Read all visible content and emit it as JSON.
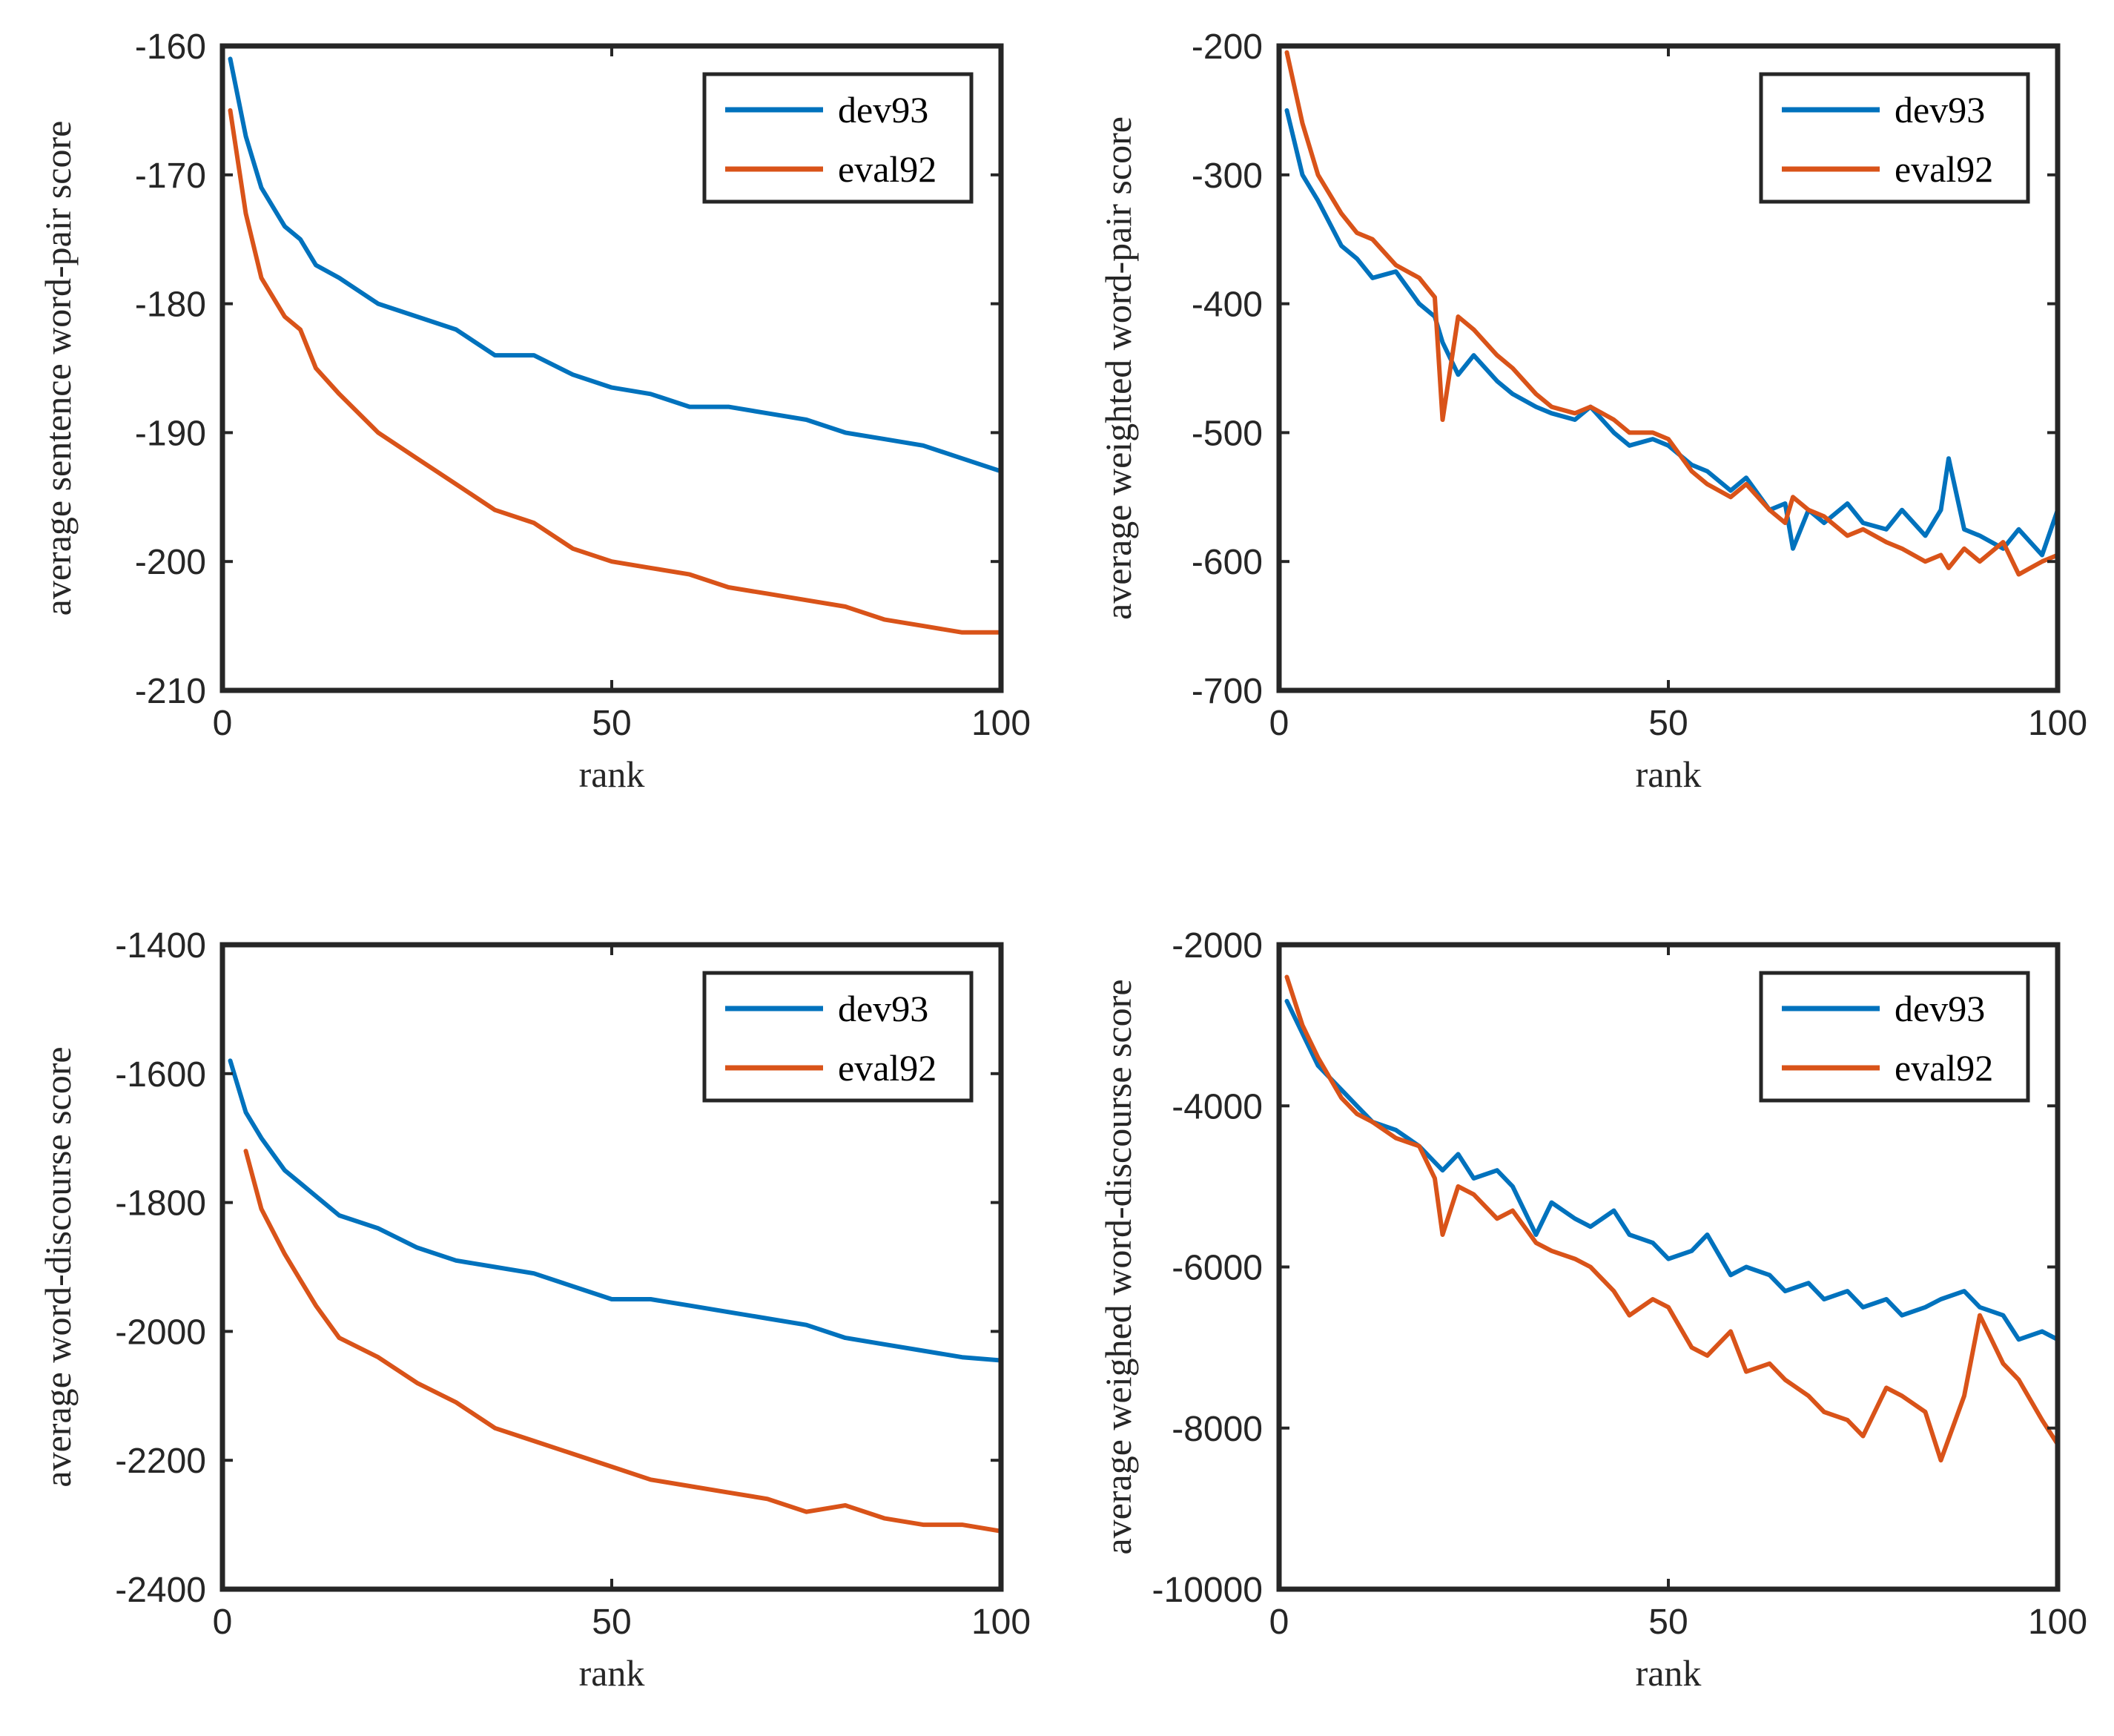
{
  "colors": {
    "dev93": "#0072BD",
    "eval92": "#D95319",
    "axis": "#262626"
  },
  "chart_data": [
    {
      "type": "line",
      "title": "",
      "xlabel": "rank",
      "ylabel": "average sentence word-pair score",
      "xlim": [
        0,
        100
      ],
      "ylim": [
        -210,
        -160
      ],
      "xticks": [
        0,
        50,
        100
      ],
      "xtick_labels": [
        "0",
        "50",
        "100"
      ],
      "yticks": [
        -160,
        -170,
        -180,
        -190,
        -200,
        -210
      ],
      "ytick_labels": [
        "-160",
        "-170",
        "-180",
        "-190",
        "-200",
        "-210"
      ],
      "legend": "top-right",
      "x": [
        1,
        3,
        5,
        8,
        10,
        12,
        15,
        20,
        25,
        30,
        35,
        40,
        45,
        50,
        55,
        60,
        65,
        70,
        75,
        80,
        85,
        90,
        95,
        100
      ],
      "series": [
        {
          "name": "dev93",
          "values": [
            -161,
            -167,
            -171,
            -174,
            -175,
            -177,
            -178,
            -180,
            -181,
            -182,
            -184,
            -184,
            -185.5,
            -186.5,
            -187,
            -188,
            -188,
            -188.5,
            -189,
            -190,
            -190.5,
            -191,
            -192,
            -193
          ]
        },
        {
          "name": "eval92",
          "values": [
            -165,
            -173,
            -178,
            -181,
            -182,
            -185,
            -187,
            -190,
            -192,
            -194,
            -196,
            -197,
            -199,
            -200,
            -200.5,
            -201,
            -202,
            -202.5,
            -203,
            -203.5,
            -204.5,
            -205,
            -205.5,
            -205.5
          ]
        }
      ]
    },
    {
      "type": "line",
      "title": "",
      "xlabel": "rank",
      "ylabel": "average weighted word-pair score",
      "xlim": [
        0,
        100
      ],
      "ylim": [
        -700,
        -200
      ],
      "xticks": [
        0,
        50,
        100
      ],
      "xtick_labels": [
        "0",
        "50",
        "100"
      ],
      "yticks": [
        -200,
        -300,
        -400,
        -500,
        -600,
        -700
      ],
      "ytick_labels": [
        "-200",
        "-300",
        "-400",
        "-500",
        "-600",
        "-700"
      ],
      "legend": "top-right",
      "x": [
        1,
        3,
        5,
        8,
        10,
        12,
        15,
        18,
        20,
        21,
        23,
        25,
        28,
        30,
        33,
        35,
        38,
        40,
        43,
        45,
        48,
        50,
        53,
        55,
        58,
        60,
        63,
        65,
        66,
        68,
        70,
        73,
        75,
        78,
        80,
        83,
        85,
        86,
        88,
        90,
        93,
        95,
        98,
        100
      ],
      "series": [
        {
          "name": "dev93",
          "values": [
            -250,
            -300,
            -320,
            -355,
            -365,
            -380,
            -375,
            -400,
            -410,
            -430,
            -455,
            -440,
            -460,
            -470,
            -480,
            -485,
            -490,
            -480,
            -500,
            -510,
            -505,
            -510,
            -525,
            -530,
            -545,
            -535,
            -560,
            -555,
            -590,
            -560,
            -570,
            -555,
            -570,
            -575,
            -560,
            -580,
            -560,
            -520,
            -575,
            -580,
            -590,
            -575,
            -595,
            -560
          ]
        },
        {
          "name": "eval92",
          "values": [
            -205,
            -260,
            -300,
            -330,
            -345,
            -350,
            -370,
            -380,
            -395,
            -490,
            -410,
            -420,
            -440,
            -450,
            -470,
            -480,
            -485,
            -480,
            -490,
            -500,
            -500,
            -505,
            -530,
            -540,
            -550,
            -540,
            -560,
            -570,
            -550,
            -560,
            -565,
            -580,
            -575,
            -585,
            -590,
            -600,
            -595,
            -605,
            -590,
            -600,
            -585,
            -610,
            -600,
            -595
          ]
        }
      ]
    },
    {
      "type": "line",
      "title": "",
      "xlabel": "rank",
      "ylabel": "average word-discourse score",
      "xlim": [
        0,
        100
      ],
      "ylim": [
        -2400,
        -1400
      ],
      "xticks": [
        0,
        50,
        100
      ],
      "xtick_labels": [
        "0",
        "50",
        "100"
      ],
      "yticks": [
        -1400,
        -1600,
        -1800,
        -2000,
        -2200,
        -2400
      ],
      "ytick_labels": [
        "-1400",
        "-1600",
        "-1800",
        "-2000",
        "-2200",
        "-2400"
      ],
      "legend": "top-right",
      "x": [
        1,
        3,
        5,
        8,
        10,
        12,
        15,
        20,
        25,
        30,
        35,
        40,
        45,
        50,
        55,
        60,
        65,
        70,
        75,
        80,
        85,
        90,
        95,
        100
      ],
      "series": [
        {
          "name": "dev93",
          "values": [
            -1580,
            -1660,
            -1700,
            -1750,
            -1770,
            -1790,
            -1820,
            -1840,
            -1870,
            -1890,
            -1900,
            -1910,
            -1930,
            -1950,
            -1950,
            -1960,
            -1970,
            -1980,
            -1990,
            -2010,
            -2020,
            -2030,
            -2040,
            -2045
          ]
        },
        {
          "name": "eval92",
          "values": [
            null,
            -1720,
            -1810,
            -1880,
            -1920,
            -1960,
            -2010,
            -2040,
            -2080,
            -2110,
            -2150,
            -2170,
            -2190,
            -2210,
            -2230,
            -2240,
            -2250,
            -2260,
            -2280,
            -2270,
            -2290,
            -2300,
            -2300,
            -2310
          ]
        }
      ]
    },
    {
      "type": "line",
      "title": "",
      "xlabel": "rank",
      "ylabel": "average weighed word-discourse score",
      "xlim": [
        0,
        100
      ],
      "ylim": [
        -10000,
        -2000
      ],
      "xticks": [
        0,
        50,
        100
      ],
      "xtick_labels": [
        "0",
        "50",
        "100"
      ],
      "yticks": [
        -2000,
        -4000,
        -6000,
        -8000,
        -10000
      ],
      "ytick_labels": [
        "-2000",
        "-4000",
        "-6000",
        "-8000",
        "-10000"
      ],
      "legend": "top-right",
      "x": [
        1,
        3,
        5,
        8,
        10,
        12,
        15,
        18,
        20,
        21,
        23,
        25,
        28,
        30,
        33,
        35,
        38,
        40,
        43,
        45,
        48,
        50,
        53,
        55,
        58,
        60,
        63,
        65,
        68,
        70,
        73,
        75,
        78,
        80,
        83,
        85,
        88,
        90,
        93,
        95,
        98,
        100
      ],
      "series": [
        {
          "name": "dev93",
          "values": [
            -2700,
            -3100,
            -3500,
            -3800,
            -4000,
            -4200,
            -4300,
            -4500,
            -4700,
            -4800,
            -4600,
            -4900,
            -4800,
            -5000,
            -5600,
            -5200,
            -5400,
            -5500,
            -5300,
            -5600,
            -5700,
            -5900,
            -5800,
            -5600,
            -6100,
            -6000,
            -6100,
            -6300,
            -6200,
            -6400,
            -6300,
            -6500,
            -6400,
            -6600,
            -6500,
            -6400,
            -6300,
            -6500,
            -6600,
            -6900,
            -6800,
            -6900
          ]
        },
        {
          "name": "eval92",
          "values": [
            -2400,
            -3000,
            -3400,
            -3900,
            -4100,
            -4200,
            -4400,
            -4500,
            -4900,
            -5600,
            -5000,
            -5100,
            -5400,
            -5300,
            -5700,
            -5800,
            -5900,
            -6000,
            -6300,
            -6600,
            -6400,
            -6500,
            -7000,
            -7100,
            -6800,
            -7300,
            -7200,
            -7400,
            -7600,
            -7800,
            -7900,
            -8100,
            -7500,
            -7600,
            -7800,
            -8400,
            -7600,
            -6600,
            -7200,
            -7400,
            -7900,
            -8200
          ]
        }
      ]
    }
  ],
  "legend_labels": [
    "dev93",
    "eval92"
  ]
}
